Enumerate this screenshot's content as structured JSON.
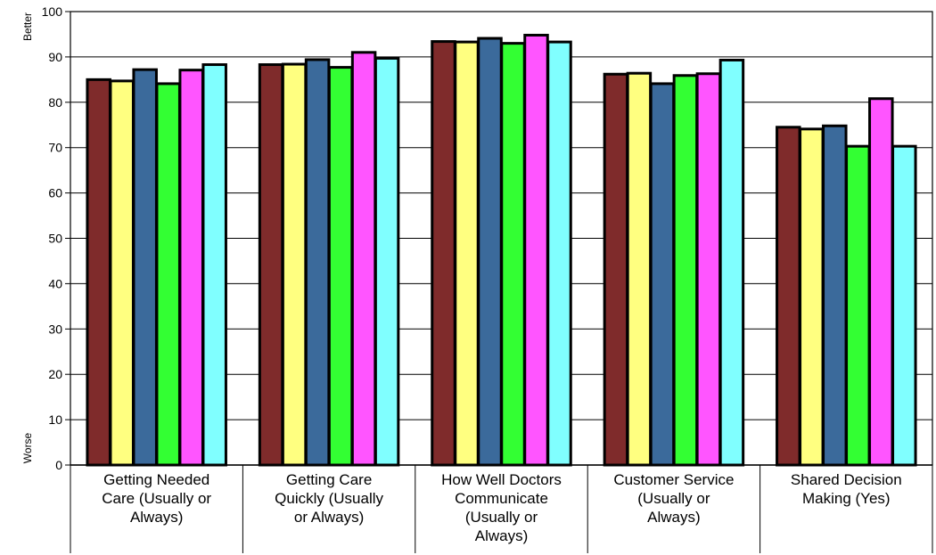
{
  "chart_data": {
    "type": "bar",
    "categories": [
      [
        "Getting Needed",
        "Care (Usually or",
        "Always)"
      ],
      [
        "Getting Care",
        "Quickly (Usually",
        "or Always)"
      ],
      [
        "How Well Doctors",
        "Communicate",
        "(Usually or",
        "Always)"
      ],
      [
        "Customer Service",
        "(Usually or",
        "Always)"
      ],
      [
        "Shared Decision",
        "Making (Yes)"
      ]
    ],
    "series": [
      {
        "color": "#7f2b2b",
        "values": [
          85.0,
          88.3,
          93.4,
          86.2,
          74.5
        ]
      },
      {
        "color": "#ffff80",
        "values": [
          84.7,
          88.4,
          93.3,
          86.4,
          74.1
        ]
      },
      {
        "color": "#3b6a9b",
        "values": [
          87.2,
          89.4,
          94.1,
          84.1,
          74.8
        ]
      },
      {
        "color": "#33ff33",
        "values": [
          84.1,
          87.7,
          93.0,
          85.9,
          70.3
        ]
      },
      {
        "color": "#ff55ff",
        "values": [
          87.1,
          91.0,
          94.8,
          86.3,
          80.8
        ]
      },
      {
        "color": "#80ffff",
        "values": [
          88.3,
          89.7,
          93.3,
          89.3,
          70.3
        ]
      }
    ],
    "ylim": [
      0,
      100
    ],
    "yticks": [
      0,
      10,
      20,
      30,
      40,
      50,
      60,
      70,
      80,
      90,
      100
    ],
    "grid": true,
    "top_label": "Better",
    "bottom_label": "Worse"
  }
}
